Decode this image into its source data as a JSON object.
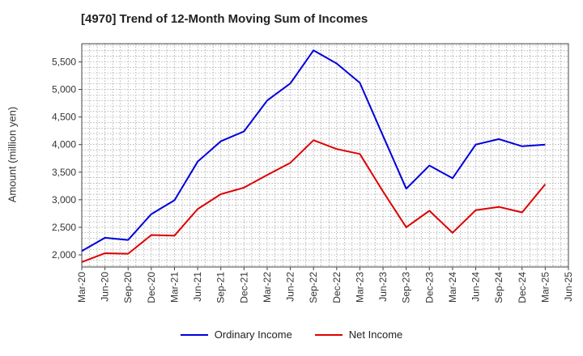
{
  "chart_data": {
    "type": "line",
    "title": "[4970]  Trend of 12-Month Moving Sum of Incomes",
    "ylabel": "Amount (million yen)",
    "xlabel": "",
    "ylim": [
      1780,
      5830
    ],
    "yticks": [
      2000,
      2500,
      3000,
      3500,
      4000,
      4500,
      5000,
      5500
    ],
    "ytick_labels": [
      "2,000",
      "2,500",
      "3,000",
      "3,500",
      "4,000",
      "4,500",
      "5,000",
      "5,500"
    ],
    "x": [
      "Mar-20",
      "Jun-20",
      "Sep-20",
      "Dec-20",
      "Mar-21",
      "Jun-21",
      "Sep-21",
      "Dec-21",
      "Mar-22",
      "Jun-22",
      "Sep-22",
      "Dec-22",
      "Mar-23",
      "Jun-23",
      "Sep-23",
      "Dec-23",
      "Mar-24",
      "Jun-24",
      "Sep-24",
      "Dec-24",
      "Mar-25",
      "Jun-25"
    ],
    "grid": true,
    "legend_position": "bottom-center",
    "series": [
      {
        "name": "Ordinary Income",
        "color": "#0000dd",
        "values": [
          2070,
          2310,
          2270,
          2740,
          2990,
          3690,
          4060,
          4240,
          4800,
          5110,
          5710,
          5470,
          5120,
          4160,
          3200,
          3620,
          3390,
          4000,
          4100,
          3970,
          4000,
          null
        ]
      },
      {
        "name": "Net Income",
        "color": "#dd0000",
        "values": [
          1870,
          2030,
          2020,
          2360,
          2350,
          2830,
          3100,
          3220,
          3450,
          3670,
          4080,
          3920,
          3830,
          3150,
          2500,
          2800,
          2400,
          2810,
          2870,
          2770,
          3280,
          null
        ]
      }
    ]
  }
}
